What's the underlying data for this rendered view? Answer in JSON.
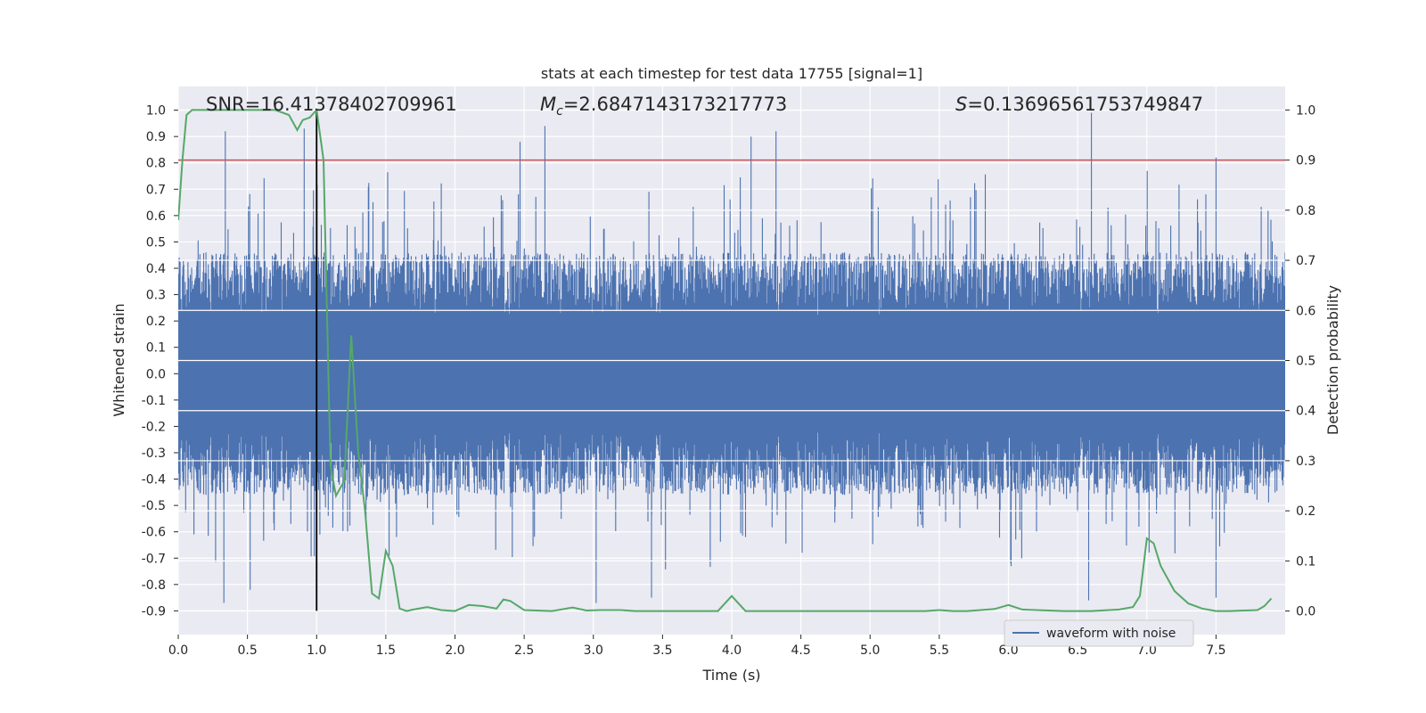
{
  "chart_data": {
    "type": "line",
    "title": "stats at each timestep for test data 17755 [signal=1]",
    "xlabel": "Time (s)",
    "ylabel": "Whitened strain",
    "y2label": "Detection probability",
    "xlim": [
      0.0,
      8.0
    ],
    "ylim": [
      -0.99,
      1.09
    ],
    "y2lim": [
      -0.047,
      1.047
    ],
    "xticks": [
      "0.0",
      "0.5",
      "1.0",
      "1.5",
      "2.0",
      "2.5",
      "3.0",
      "3.5",
      "4.0",
      "4.5",
      "5.0",
      "5.5",
      "6.0",
      "6.5",
      "7.0",
      "7.5"
    ],
    "yticks": [
      "1.0",
      "0.9",
      "0.8",
      "0.7",
      "0.6",
      "0.5",
      "0.4",
      "0.3",
      "0.2",
      "0.1",
      "0.0",
      "-0.1",
      "-0.2",
      "-0.3",
      "-0.4",
      "-0.5",
      "-0.6",
      "-0.7",
      "-0.8",
      "-0.9"
    ],
    "y2ticks": [
      "1.0",
      "0.9",
      "0.8",
      "0.7",
      "0.6",
      "0.5",
      "0.4",
      "0.3",
      "0.2",
      "0.1",
      "0.0"
    ],
    "grid": true,
    "legend_position": "lower-right",
    "annotations": {
      "snr": "SNR=16.41378402709961",
      "mc_symbol": "M",
      "mc_subscript": "c",
      "mc_value": "=2.6847143173217773",
      "s_symbol": "S",
      "s_value": "=0.13696561753749847"
    },
    "threshold": {
      "axis": "right",
      "y": 0.9,
      "color": "#c44e52"
    },
    "merger_marker": {
      "x": 1.0,
      "ymin": -0.9,
      "ymax": 1.0,
      "color": "#000000"
    },
    "series": [
      {
        "name": "waveform with noise",
        "axis": "left",
        "color": "#4c72b0",
        "style": "dense noise",
        "typical_positive_peak": 0.4,
        "typical_negative_peak": -0.4,
        "max": 0.99,
        "min": -0.88,
        "notable_peaks": [
          [
            0.34,
            0.92
          ],
          [
            0.91,
            0.93
          ],
          [
            2.47,
            0.88
          ],
          [
            2.65,
            0.94
          ],
          [
            4.14,
            0.9
          ],
          [
            4.32,
            0.92
          ],
          [
            6.6,
            0.99
          ],
          [
            7.5,
            0.82
          ]
        ],
        "notable_troughs": [
          [
            0.33,
            -0.87
          ],
          [
            0.52,
            -0.82
          ],
          [
            3.02,
            -0.87
          ],
          [
            3.42,
            -0.85
          ],
          [
            4.1,
            -0.62
          ],
          [
            6.58,
            -0.86
          ],
          [
            7.5,
            -0.85
          ]
        ]
      },
      {
        "axis": "right",
        "color": "#55a868",
        "x": [
          0.0,
          0.03,
          0.06,
          0.1,
          0.15,
          0.2,
          0.3,
          0.4,
          0.5,
          0.6,
          0.7,
          0.8,
          0.86,
          0.9,
          0.95,
          1.0,
          1.05,
          1.1,
          1.14,
          1.2,
          1.25,
          1.3,
          1.35,
          1.4,
          1.45,
          1.5,
          1.55,
          1.6,
          1.65,
          1.7,
          1.8,
          1.9,
          2.0,
          2.1,
          2.2,
          2.3,
          2.35,
          2.4,
          2.5,
          2.7,
          2.85,
          2.95,
          3.05,
          3.2,
          3.3,
          3.5,
          3.7,
          3.9,
          4.0,
          4.1,
          4.2,
          4.4,
          4.6,
          4.8,
          5.0,
          5.2,
          5.4,
          5.5,
          5.6,
          5.7,
          5.8,
          5.9,
          6.0,
          6.1,
          6.2,
          6.4,
          6.6,
          6.8,
          6.9,
          6.95,
          7.0,
          7.05,
          7.1,
          7.2,
          7.3,
          7.4,
          7.5,
          7.6,
          7.7,
          7.8,
          7.85,
          7.9
        ],
        "values": [
          0.78,
          0.9,
          0.99,
          1.0,
          1.0,
          1.0,
          1.0,
          1.0,
          1.0,
          1.0,
          1.0,
          0.99,
          0.96,
          0.98,
          0.985,
          1.0,
          0.9,
          0.29,
          0.23,
          0.26,
          0.55,
          0.32,
          0.2,
          0.035,
          0.025,
          0.12,
          0.09,
          0.005,
          0.0,
          0.003,
          0.008,
          0.002,
          0.0,
          0.012,
          0.01,
          0.005,
          0.023,
          0.02,
          0.002,
          0.0,
          0.007,
          0.001,
          0.002,
          0.002,
          0.0,
          0.0,
          0.0,
          0.0,
          0.03,
          0.0,
          0.0,
          0.0,
          0.0,
          0.0,
          0.0,
          0.0,
          0.0,
          0.002,
          0.0,
          0.0,
          0.002,
          0.004,
          0.012,
          0.003,
          0.002,
          0.0,
          0.0,
          0.003,
          0.008,
          0.03,
          0.145,
          0.135,
          0.09,
          0.04,
          0.015,
          0.005,
          0.0,
          0.0,
          0.001,
          0.002,
          0.01,
          0.025
        ]
      }
    ]
  }
}
